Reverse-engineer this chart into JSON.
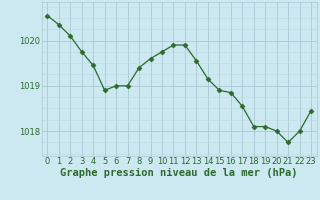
{
  "x": [
    0,
    1,
    2,
    3,
    4,
    5,
    6,
    7,
    8,
    9,
    10,
    11,
    12,
    13,
    14,
    15,
    16,
    17,
    18,
    19,
    20,
    21,
    22,
    23
  ],
  "y": [
    1020.55,
    1020.35,
    1020.1,
    1019.75,
    1019.45,
    1018.9,
    1019.0,
    1019.0,
    1019.4,
    1019.6,
    1019.75,
    1019.9,
    1019.9,
    1019.55,
    1019.15,
    1018.9,
    1018.85,
    1018.55,
    1018.1,
    1018.1,
    1018.0,
    1017.75,
    1018.0,
    1018.45
  ],
  "line_color": "#2d6a2d",
  "marker": "D",
  "marker_size": 2.5,
  "bg_color": "#cce8f0",
  "grid_color_major": "#aac8d4",
  "grid_color_minor": "#bcd8e2",
  "xlabel": "Graphe pression niveau de la mer (hPa)",
  "xlabel_fontsize": 7.5,
  "xlabel_color": "#2d6a2d",
  "ytick_labels": [
    "1018",
    "1019",
    "1020"
  ],
  "ylim": [
    1017.45,
    1020.85
  ],
  "xlim": [
    -0.5,
    23.5
  ],
  "xtick_labels": [
    "0",
    "1",
    "2",
    "3",
    "4",
    "5",
    "6",
    "7",
    "8",
    "9",
    "10",
    "11",
    "12",
    "13",
    "14",
    "15",
    "16",
    "17",
    "18",
    "19",
    "20",
    "21",
    "22",
    "23"
  ],
  "tick_fontsize": 6,
  "tick_color": "#2d6a2d"
}
